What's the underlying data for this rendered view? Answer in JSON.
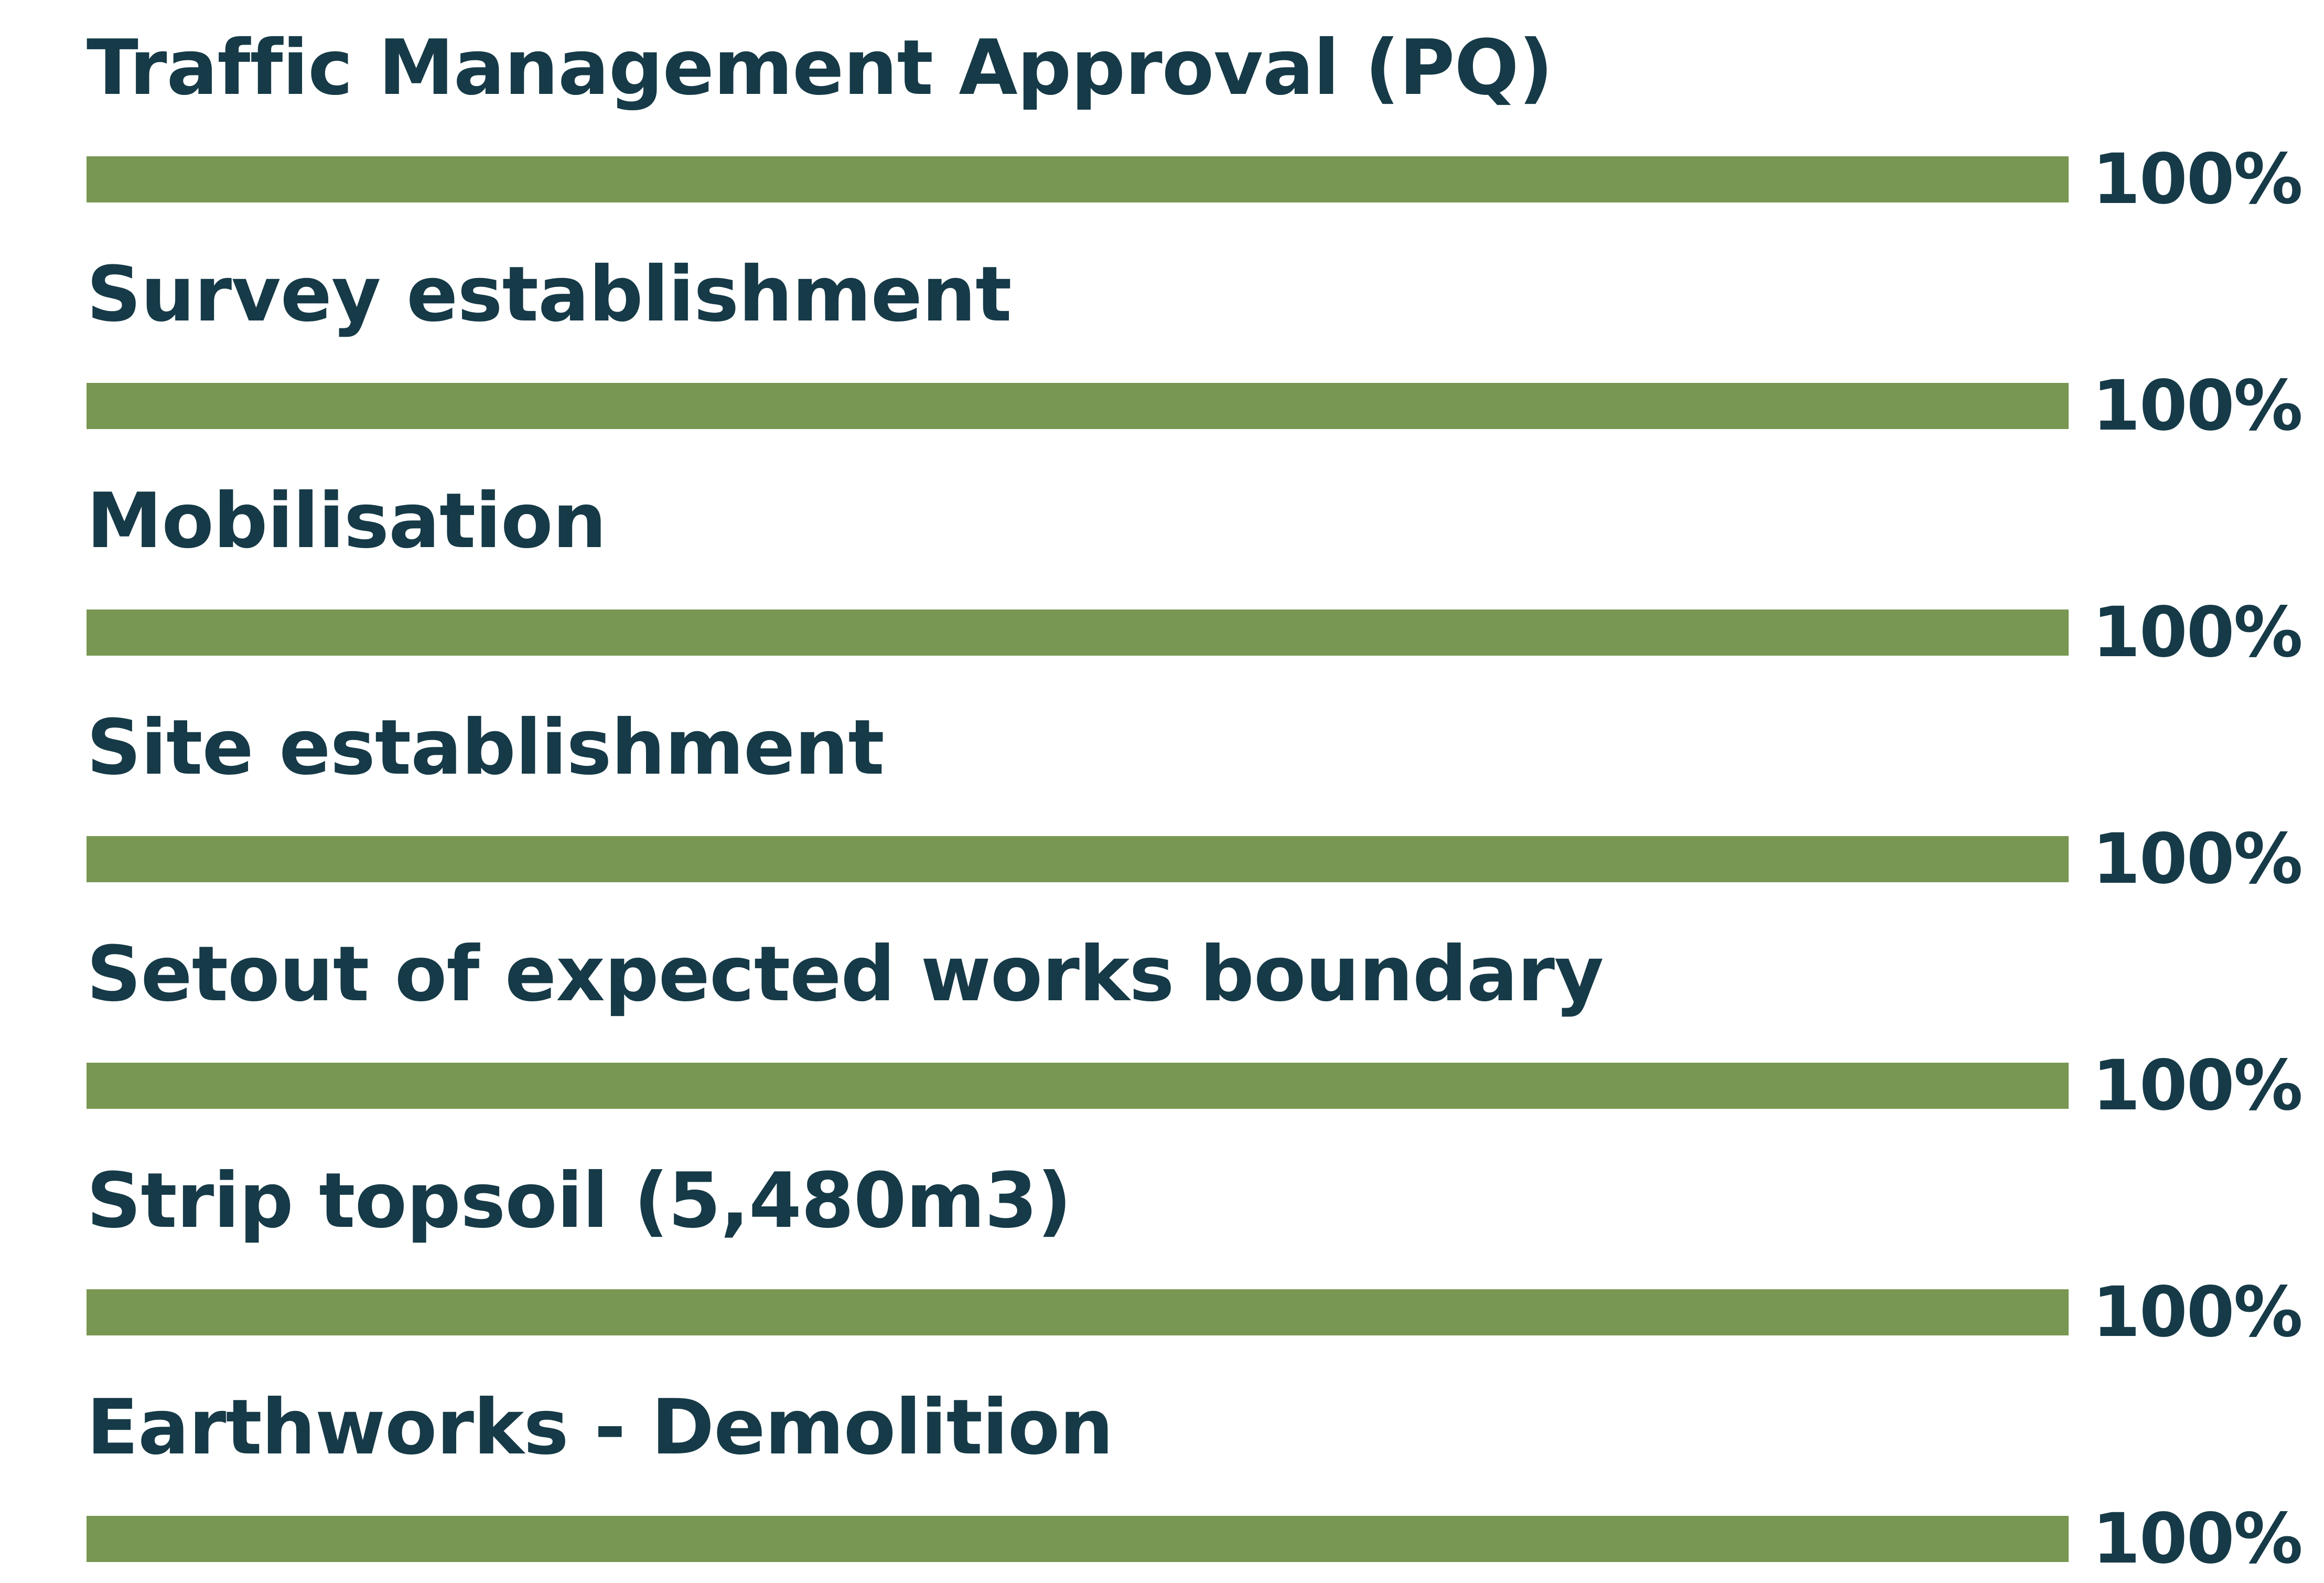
{
  "colors": {
    "bar": "#789752",
    "text": "#163a47",
    "background": "#ffffff"
  },
  "chart_data": {
    "type": "bar",
    "orientation": "horizontal",
    "categories": [
      "Traffic Management Approval (PQ)",
      "Survey establishment",
      "Mobilisation",
      "Site establishment",
      "Setout of expected works boundary",
      "Strip topsoil (5,480m3)",
      "Earthworks - Demolition"
    ],
    "values": [
      100,
      100,
      100,
      100,
      100,
      100,
      100
    ],
    "value_labels": [
      "100%",
      "100%",
      "100%",
      "100%",
      "100%",
      "100%",
      "100%"
    ],
    "xlim": [
      0,
      100
    ],
    "grid": false,
    "legend": false
  }
}
